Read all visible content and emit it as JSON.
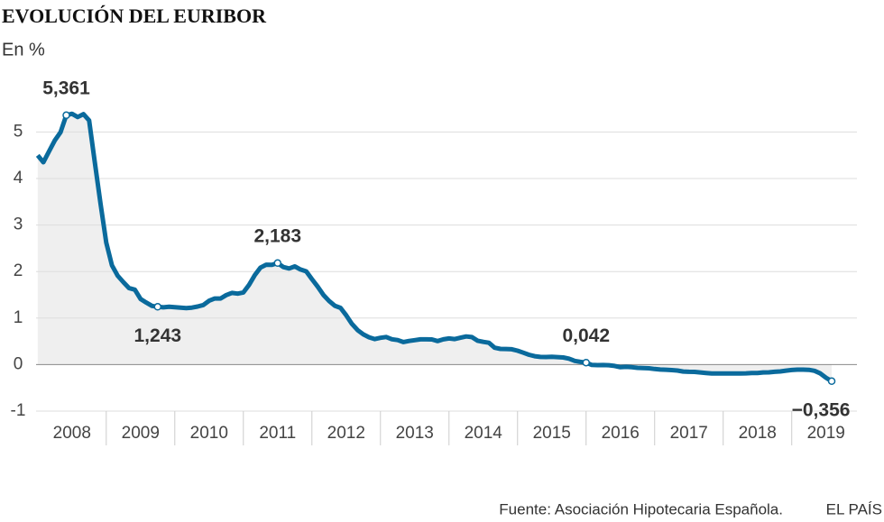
{
  "chart_data": {
    "type": "line",
    "title": "EVOLUCIÓN DEL EURIBOR",
    "subtitle": "En %",
    "source": "Fuente: Asociación Hipotecaria Española.",
    "publisher": "EL PAÍS",
    "xlim": [
      2007.95,
      2020.03
    ],
    "ylim": [
      -1,
      5.9
    ],
    "yticks": [
      -1,
      0,
      1,
      2,
      3,
      4,
      5
    ],
    "xticks": [
      {
        "value": 2008.5,
        "label": "2008"
      },
      {
        "value": 2009.5,
        "label": "2009"
      },
      {
        "value": 2010.5,
        "label": "2010"
      },
      {
        "value": 2011.5,
        "label": "2011"
      },
      {
        "value": 2012.5,
        "label": "2012"
      },
      {
        "value": 2013.5,
        "label": "2013"
      },
      {
        "value": 2014.5,
        "label": "2014"
      },
      {
        "value": 2015.5,
        "label": "2015"
      },
      {
        "value": 2016.5,
        "label": "2016"
      },
      {
        "value": 2017.5,
        "label": "2017"
      },
      {
        "value": 2018.5,
        "label": "2018"
      },
      {
        "value": 2019.5,
        "label": "2019"
      }
    ],
    "grid": true,
    "x": [
      2008,
      2008.083,
      2008.167,
      2008.25,
      2008.333,
      2008.417,
      2008.5,
      2008.583,
      2008.667,
      2008.75,
      2008.833,
      2008.917,
      2009,
      2009.083,
      2009.167,
      2009.25,
      2009.333,
      2009.417,
      2009.5,
      2009.583,
      2009.667,
      2009.75,
      2009.833,
      2009.917,
      2010,
      2010.083,
      2010.167,
      2010.25,
      2010.333,
      2010.417,
      2010.5,
      2010.583,
      2010.667,
      2010.75,
      2010.833,
      2010.917,
      2011,
      2011.083,
      2011.167,
      2011.25,
      2011.333,
      2011.417,
      2011.5,
      2011.583,
      2011.667,
      2011.75,
      2011.833,
      2011.917,
      2012,
      2012.083,
      2012.167,
      2012.25,
      2012.333,
      2012.417,
      2012.5,
      2012.583,
      2012.667,
      2012.75,
      2012.833,
      2012.917,
      2013,
      2013.083,
      2013.167,
      2013.25,
      2013.333,
      2013.417,
      2013.5,
      2013.583,
      2013.667,
      2013.75,
      2013.833,
      2013.917,
      2014,
      2014.083,
      2014.167,
      2014.25,
      2014.333,
      2014.417,
      2014.5,
      2014.583,
      2014.667,
      2014.75,
      2014.833,
      2014.917,
      2015,
      2015.083,
      2015.167,
      2015.25,
      2015.333,
      2015.417,
      2015.5,
      2015.583,
      2015.667,
      2015.75,
      2015.833,
      2015.917,
      2016,
      2016.083,
      2016.167,
      2016.25,
      2016.333,
      2016.417,
      2016.5,
      2016.583,
      2016.667,
      2016.75,
      2016.833,
      2016.917,
      2017,
      2017.083,
      2017.167,
      2017.25,
      2017.333,
      2017.417,
      2017.5,
      2017.583,
      2017.667,
      2017.75,
      2017.833,
      2017.917,
      2018,
      2018.083,
      2018.167,
      2018.25,
      2018.333,
      2018.417,
      2018.5,
      2018.583,
      2018.667,
      2018.75,
      2018.833,
      2018.917,
      2019,
      2019.083,
      2019.167,
      2019.25,
      2019.333,
      2019.417,
      2019.5,
      2019.583
    ],
    "series": [
      {
        "color": "#0a6a9c",
        "values": [
          4.498,
          4.349,
          4.59,
          4.82,
          4.994,
          5.361,
          5.393,
          5.323,
          5.384,
          5.248,
          4.35,
          3.452,
          2.622,
          2.135,
          1.909,
          1.771,
          1.644,
          1.61,
          1.412,
          1.334,
          1.261,
          1.243,
          1.231,
          1.242,
          1.232,
          1.225,
          1.215,
          1.225,
          1.249,
          1.281,
          1.373,
          1.421,
          1.42,
          1.495,
          1.541,
          1.526,
          1.55,
          1.714,
          1.924,
          2.086,
          2.147,
          2.144,
          2.183,
          2.097,
          2.067,
          2.11,
          2.044,
          2.004,
          1.837,
          1.678,
          1.499,
          1.368,
          1.266,
          1.219,
          1.061,
          0.877,
          0.74,
          0.65,
          0.588,
          0.549,
          0.575,
          0.594,
          0.545,
          0.528,
          0.484,
          0.507,
          0.525,
          0.542,
          0.543,
          0.541,
          0.506,
          0.543,
          0.562,
          0.549,
          0.577,
          0.604,
          0.592,
          0.513,
          0.488,
          0.469,
          0.362,
          0.338,
          0.335,
          0.329,
          0.298,
          0.255,
          0.212,
          0.18,
          0.165,
          0.163,
          0.167,
          0.161,
          0.154,
          0.128,
          0.079,
          0.059,
          0.042,
          -0.008,
          -0.012,
          -0.01,
          -0.013,
          -0.028,
          -0.056,
          -0.048,
          -0.057,
          -0.069,
          -0.074,
          -0.08,
          -0.095,
          -0.106,
          -0.11,
          -0.119,
          -0.127,
          -0.149,
          -0.154,
          -0.156,
          -0.168,
          -0.18,
          -0.189,
          -0.19,
          -0.189,
          -0.191,
          -0.191,
          -0.19,
          -0.188,
          -0.181,
          -0.18,
          -0.169,
          -0.166,
          -0.154,
          -0.147,
          -0.129,
          -0.116,
          -0.108,
          -0.109,
          -0.112,
          -0.134,
          -0.19,
          -0.283,
          -0.356
        ],
        "value_labels": [
          null,
          null,
          null,
          null,
          null,
          "5,361",
          null,
          null,
          null,
          null,
          null,
          null,
          null,
          null,
          null,
          null,
          null,
          null,
          null,
          null,
          null,
          "1,243",
          null,
          null,
          null,
          null,
          null,
          null,
          null,
          null,
          null,
          null,
          null,
          null,
          null,
          null,
          null,
          null,
          null,
          null,
          null,
          null,
          "2,183",
          null,
          null,
          null,
          null,
          null,
          null,
          null,
          null,
          null,
          null,
          null,
          null,
          null,
          null,
          null,
          null,
          null,
          null,
          null,
          null,
          null,
          null,
          null,
          null,
          null,
          null,
          null,
          null,
          null,
          null,
          null,
          null,
          null,
          null,
          null,
          null,
          null,
          null,
          null,
          null,
          null,
          null,
          null,
          null,
          null,
          null,
          null,
          null,
          null,
          null,
          null,
          null,
          null,
          "0,042",
          null,
          null,
          null,
          null,
          null,
          null,
          null,
          null,
          null,
          null,
          null,
          null,
          null,
          null,
          null,
          null,
          null,
          null,
          null,
          null,
          null,
          null,
          null,
          null,
          null,
          null,
          null,
          null,
          null,
          null,
          null,
          null,
          null,
          null,
          null,
          null,
          null,
          null,
          null,
          null,
          null,
          null,
          "−0,356"
        ]
      }
    ]
  }
}
